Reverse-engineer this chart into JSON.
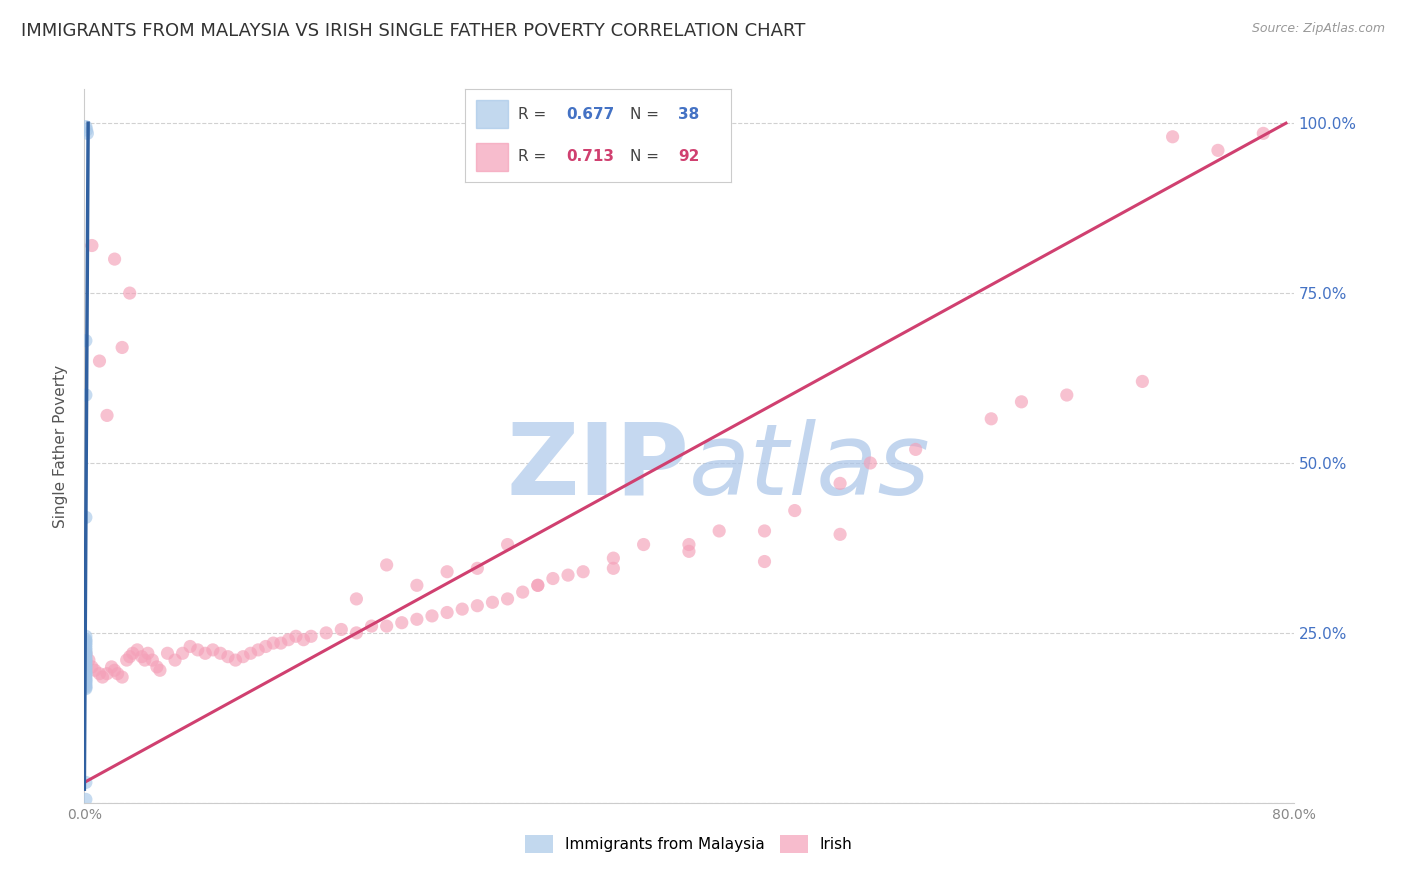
{
  "title": "IMMIGRANTS FROM MALAYSIA VS IRISH SINGLE FATHER POVERTY CORRELATION CHART",
  "source": "Source: ZipAtlas.com",
  "ylabel": "Single Father Poverty",
  "xmin": 0.0,
  "xmax": 0.8,
  "ymin": 0.0,
  "ymax": 1.05,
  "yticks": [
    0.0,
    0.25,
    0.5,
    0.75,
    1.0
  ],
  "ytick_labels": [
    "",
    "25.0%",
    "50.0%",
    "75.0%",
    "100.0%"
  ],
  "xticks": [
    0.0,
    0.1,
    0.2,
    0.3,
    0.4,
    0.5,
    0.6,
    0.7,
    0.8
  ],
  "xtick_labels": [
    "0.0%",
    "",
    "",
    "",
    "",
    "",
    "",
    "",
    "80.0%"
  ],
  "blue_color": "#a8c8e8",
  "pink_color": "#f4a0b8",
  "blue_line_color": "#3060a0",
  "pink_line_color": "#d04070",
  "scatter_alpha": 0.65,
  "scatter_size": 90,
  "blue_scatter_x": [
    0.001,
    0.002,
    0.0015,
    0.001,
    0.001,
    0.001,
    0.001,
    0.001,
    0.001,
    0.001,
    0.001,
    0.001,
    0.001,
    0.001,
    0.001,
    0.001,
    0.001,
    0.001,
    0.001,
    0.001,
    0.001,
    0.001,
    0.001,
    0.001,
    0.001,
    0.001,
    0.001,
    0.001,
    0.001,
    0.001,
    0.001,
    0.001,
    0.001,
    0.001,
    0.001,
    0.001,
    0.001,
    0.001
  ],
  "blue_scatter_y": [
    0.995,
    0.985,
    0.99,
    0.68,
    0.6,
    0.42,
    0.245,
    0.24,
    0.238,
    0.235,
    0.232,
    0.228,
    0.225,
    0.222,
    0.22,
    0.218,
    0.215,
    0.212,
    0.21,
    0.208,
    0.205,
    0.202,
    0.2,
    0.198,
    0.195,
    0.192,
    0.19,
    0.188,
    0.185,
    0.182,
    0.18,
    0.178,
    0.175,
    0.172,
    0.17,
    0.168,
    0.03,
    0.005
  ],
  "pink_scatter_x": [
    0.001,
    0.003,
    0.005,
    0.007,
    0.01,
    0.012,
    0.015,
    0.018,
    0.02,
    0.022,
    0.025,
    0.028,
    0.03,
    0.032,
    0.035,
    0.038,
    0.04,
    0.042,
    0.045,
    0.048,
    0.05,
    0.055,
    0.06,
    0.065,
    0.07,
    0.075,
    0.08,
    0.085,
    0.09,
    0.095,
    0.1,
    0.105,
    0.11,
    0.115,
    0.12,
    0.125,
    0.13,
    0.135,
    0.14,
    0.145,
    0.15,
    0.16,
    0.17,
    0.18,
    0.19,
    0.2,
    0.21,
    0.22,
    0.23,
    0.24,
    0.25,
    0.26,
    0.27,
    0.28,
    0.29,
    0.3,
    0.31,
    0.33,
    0.35,
    0.37,
    0.4,
    0.42,
    0.45,
    0.47,
    0.5,
    0.52,
    0.55,
    0.6,
    0.62,
    0.65,
    0.7,
    0.72,
    0.75,
    0.78,
    0.005,
    0.01,
    0.015,
    0.02,
    0.025,
    0.03,
    0.18,
    0.2,
    0.22,
    0.24,
    0.26,
    0.28,
    0.3,
    0.32,
    0.35,
    0.4,
    0.45,
    0.5
  ],
  "pink_scatter_y": [
    0.22,
    0.21,
    0.2,
    0.195,
    0.19,
    0.185,
    0.19,
    0.2,
    0.195,
    0.19,
    0.185,
    0.21,
    0.215,
    0.22,
    0.225,
    0.215,
    0.21,
    0.22,
    0.21,
    0.2,
    0.195,
    0.22,
    0.21,
    0.22,
    0.23,
    0.225,
    0.22,
    0.225,
    0.22,
    0.215,
    0.21,
    0.215,
    0.22,
    0.225,
    0.23,
    0.235,
    0.235,
    0.24,
    0.245,
    0.24,
    0.245,
    0.25,
    0.255,
    0.25,
    0.26,
    0.26,
    0.265,
    0.27,
    0.275,
    0.28,
    0.285,
    0.29,
    0.295,
    0.3,
    0.31,
    0.32,
    0.33,
    0.34,
    0.36,
    0.38,
    0.38,
    0.4,
    0.4,
    0.43,
    0.47,
    0.5,
    0.52,
    0.565,
    0.59,
    0.6,
    0.62,
    0.98,
    0.96,
    0.985,
    0.82,
    0.65,
    0.57,
    0.8,
    0.67,
    0.75,
    0.3,
    0.35,
    0.32,
    0.34,
    0.345,
    0.38,
    0.32,
    0.335,
    0.345,
    0.37,
    0.355,
    0.395
  ],
  "blue_line_x0": 0.0,
  "blue_line_y0": 0.02,
  "blue_line_x1": 0.0025,
  "blue_line_y1": 1.0,
  "pink_line_x0": 0.0,
  "pink_line_y0": 0.03,
  "pink_line_x1": 0.795,
  "pink_line_y1": 1.0,
  "bg_color": "#ffffff",
  "grid_color": "#cccccc",
  "tick_label_color_right": "#4472c4",
  "pink_label_color": "#d04070",
  "title_color": "#333333",
  "title_fontsize": 13,
  "ylabel_fontsize": 11,
  "legend_fontsize": 12
}
